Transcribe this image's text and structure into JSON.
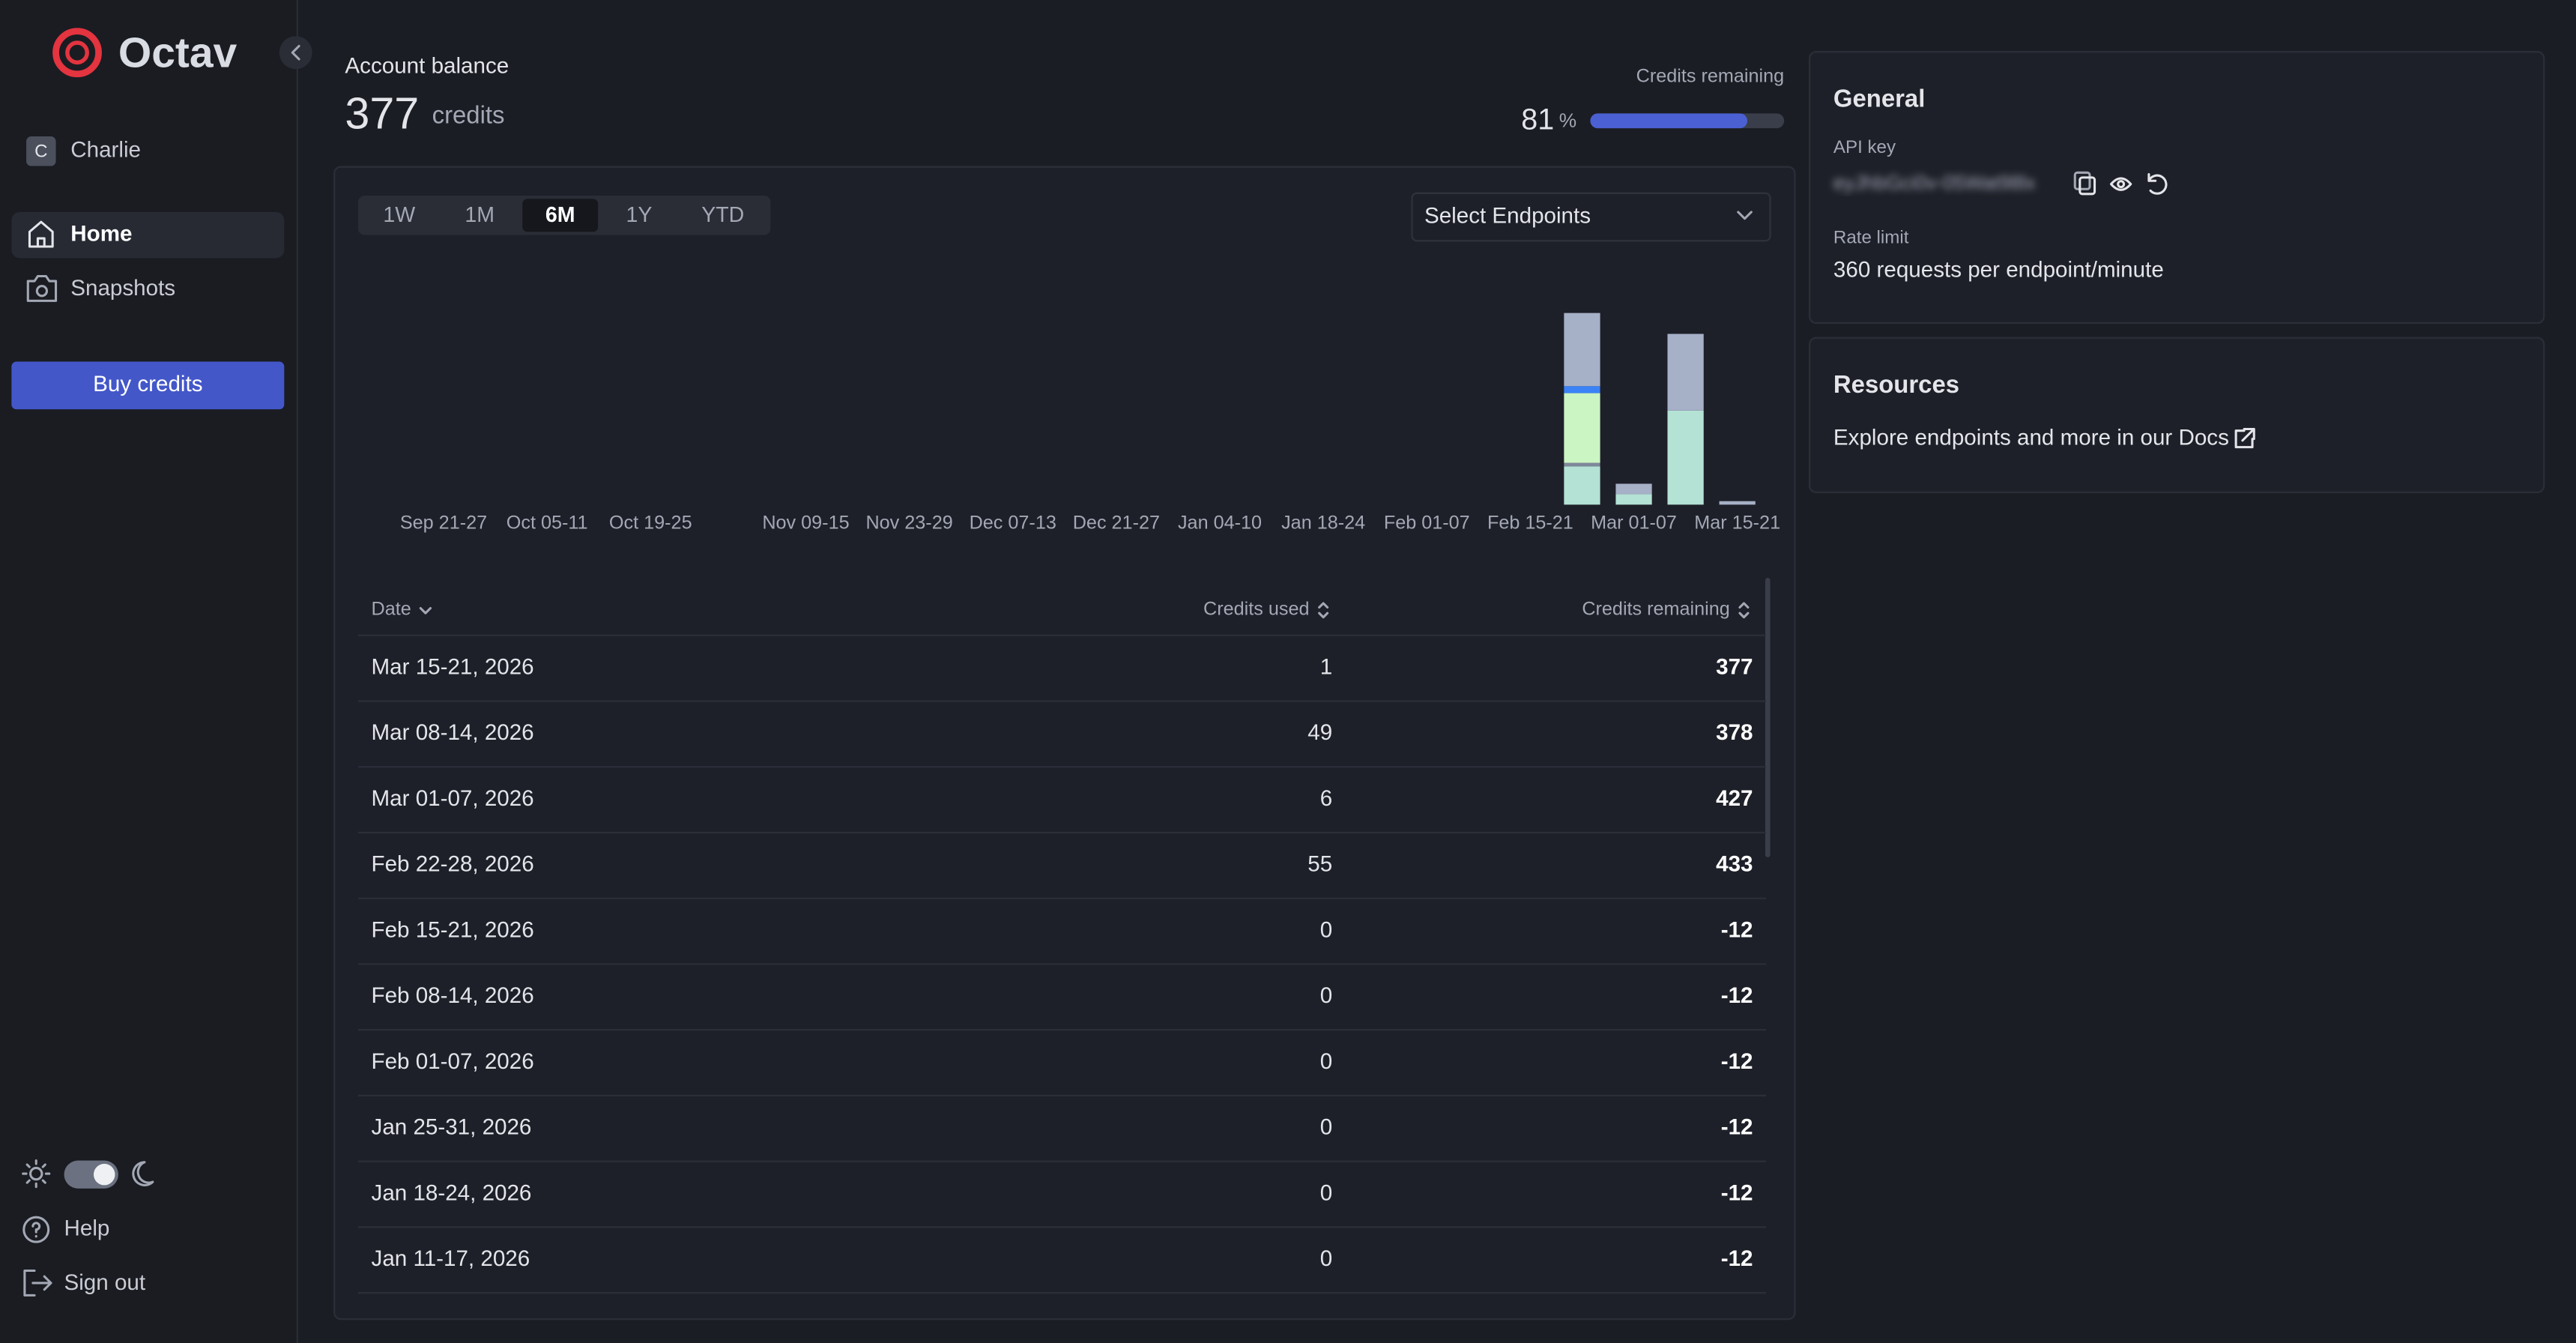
{
  "sidebar": {
    "brand": "Octav",
    "user": {
      "initial": "C",
      "name": "Charlie"
    },
    "nav": [
      "Home",
      "Snapshots"
    ],
    "buy_button": "Buy credits",
    "footer": [
      "Help",
      "Sign out"
    ]
  },
  "header": {
    "balance_label": "Account balance",
    "balance_value": 377,
    "balance_unit": "credits",
    "credits_remaining_label": "Credits remaining",
    "credits_remaining_percent": 81,
    "percent_sign": "%"
  },
  "range_tabs": [
    "1W",
    "1M",
    "6M",
    "1Y",
    "YTD"
  ],
  "active_tab": "6M",
  "endpoint_select": "Select Endpoints",
  "chart_data": {
    "type": "bar",
    "stacked": true,
    "categories": [
      "Sep 21-27",
      null,
      "Oct 05-11",
      null,
      "Oct 19-25",
      null,
      null,
      "Nov 09-15",
      null,
      "Nov 23-29",
      null,
      "Dec 07-13",
      null,
      "Dec 21-27",
      null,
      "Jan 04-10",
      null,
      "Jan 18-24",
      null,
      "Feb 01-07",
      null,
      "Feb 15-21",
      null,
      "Mar 01-07",
      null,
      "Mar 15-21"
    ],
    "series": [
      {
        "color": "#b4e2d5",
        "values": [
          0,
          0,
          0,
          0,
          0,
          0,
          0,
          0,
          0,
          0,
          0,
          0,
          0,
          0,
          0,
          0,
          0,
          0,
          0,
          0,
          0,
          0,
          11,
          3,
          27,
          0
        ]
      },
      {
        "color": "#7f889b",
        "values": [
          0,
          0,
          0,
          0,
          0,
          0,
          0,
          0,
          0,
          0,
          0,
          0,
          0,
          0,
          0,
          0,
          0,
          0,
          0,
          0,
          0,
          0,
          1,
          0,
          0,
          0
        ]
      },
      {
        "color": "#cbf5c3",
        "values": [
          0,
          0,
          0,
          0,
          0,
          0,
          0,
          0,
          0,
          0,
          0,
          0,
          0,
          0,
          0,
          0,
          0,
          0,
          0,
          0,
          0,
          0,
          20,
          0,
          0,
          0
        ]
      },
      {
        "color": "#3b82f6",
        "values": [
          0,
          0,
          0,
          0,
          0,
          0,
          0,
          0,
          0,
          0,
          0,
          0,
          0,
          0,
          0,
          0,
          0,
          0,
          0,
          0,
          0,
          0,
          2,
          0,
          0,
          0
        ]
      },
      {
        "color": "#a6b0c7",
        "values": [
          0,
          0,
          0,
          0,
          0,
          0,
          0,
          0,
          0,
          0,
          0,
          0,
          0,
          0,
          0,
          0,
          0,
          0,
          0,
          0,
          0,
          0,
          21,
          3,
          22,
          1
        ]
      }
    ]
  },
  "table": {
    "columns": [
      "Date",
      "Credits used",
      "Credits remaining"
    ],
    "rows": [
      [
        "Mar 15-21, 2026",
        1,
        377
      ],
      [
        "Mar 08-14, 2026",
        49,
        378
      ],
      [
        "Mar 01-07, 2026",
        6,
        427
      ],
      [
        "Feb 22-28, 2026",
        55,
        433
      ],
      [
        "Feb 15-21, 2026",
        0,
        -12
      ],
      [
        "Feb 08-14, 2026",
        0,
        -12
      ],
      [
        "Feb 01-07, 2026",
        0,
        -12
      ],
      [
        "Jan 25-31, 2026",
        0,
        -12
      ],
      [
        "Jan 18-24, 2026",
        0,
        -12
      ],
      [
        "Jan 11-17, 2026",
        0,
        -12
      ]
    ]
  },
  "general": {
    "title": "General",
    "api_key_label": "API key",
    "api_key": "eyJhbGci0v-05Wat98lx",
    "rate_limit_label": "Rate limit",
    "rate_limit": "360 requests per endpoint/minute"
  },
  "resources": {
    "title": "Resources",
    "link": "Explore endpoints and more in our Docs"
  }
}
